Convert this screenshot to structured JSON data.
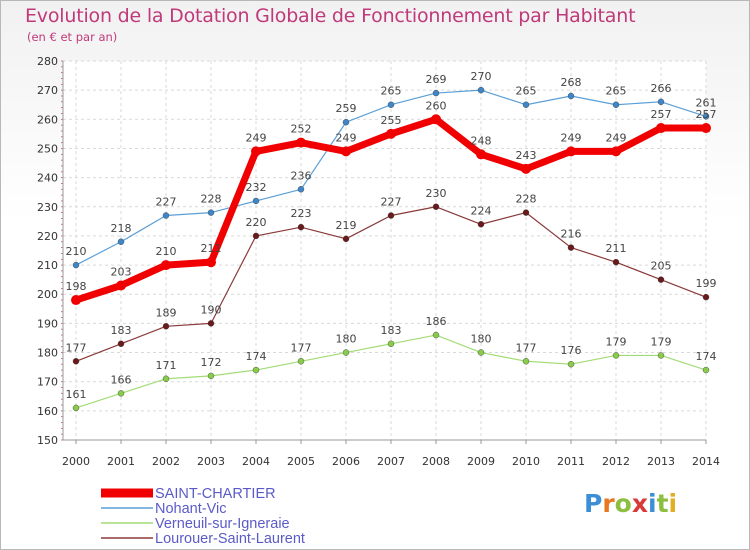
{
  "header": {
    "title": "Evolution de la Dotation Globale de Fonctionnement par Habitant",
    "subtitle": "(en € et par an)"
  },
  "logo": {
    "letters": [
      "P",
      "r",
      "o",
      "x",
      "i",
      "t",
      "i"
    ],
    "colors": [
      "#3a8fd6",
      "#e87722",
      "#8cbf3f",
      "#d83a3a",
      "#3a8fd6",
      "#8cbf3f",
      "#e0b020"
    ]
  },
  "chart_data": {
    "type": "line",
    "x": [
      2000,
      2001,
      2002,
      2003,
      2004,
      2005,
      2006,
      2007,
      2008,
      2009,
      2010,
      2011,
      2012,
      2013,
      2014
    ],
    "ylim": [
      150,
      280
    ],
    "yticks": [
      150,
      160,
      170,
      180,
      190,
      200,
      210,
      220,
      230,
      240,
      250,
      260,
      270,
      280
    ],
    "grid": true,
    "legend_position": "bottom-left",
    "series": [
      {
        "name": "Nohant-Vic",
        "color": "#5b9fd6",
        "marker": "#3f86c8",
        "width": 1.2,
        "values": [
          210,
          218,
          227,
          228,
          232,
          236,
          259,
          265,
          269,
          270,
          265,
          268,
          265,
          266,
          261
        ]
      },
      {
        "name": "Verneuil-sur-Igneraie",
        "color": "#a3dc76",
        "marker": "#88cc4a",
        "width": 1.2,
        "values": [
          161,
          166,
          171,
          172,
          174,
          177,
          180,
          183,
          186,
          180,
          177,
          176,
          179,
          179,
          174
        ]
      },
      {
        "name": "Lourouer-Saint-Laurent",
        "color": "#8a3a3a",
        "marker": "#6a1a1a",
        "width": 1.2,
        "values": [
          177,
          183,
          189,
          190,
          220,
          223,
          219,
          227,
          230,
          224,
          228,
          216,
          211,
          205,
          199
        ]
      },
      {
        "name": "SAINT-CHARTIER",
        "color": "#f00000",
        "marker": "#f00000",
        "width": 7,
        "values": [
          198,
          203,
          210,
          211,
          249,
          252,
          249,
          255,
          260,
          248,
          243,
          249,
          249,
          257,
          257
        ]
      }
    ],
    "legend_order": [
      "SAINT-CHARTIER",
      "Nohant-Vic",
      "Verneuil-sur-Igneraie",
      "Lourouer-Saint-Laurent"
    ]
  }
}
